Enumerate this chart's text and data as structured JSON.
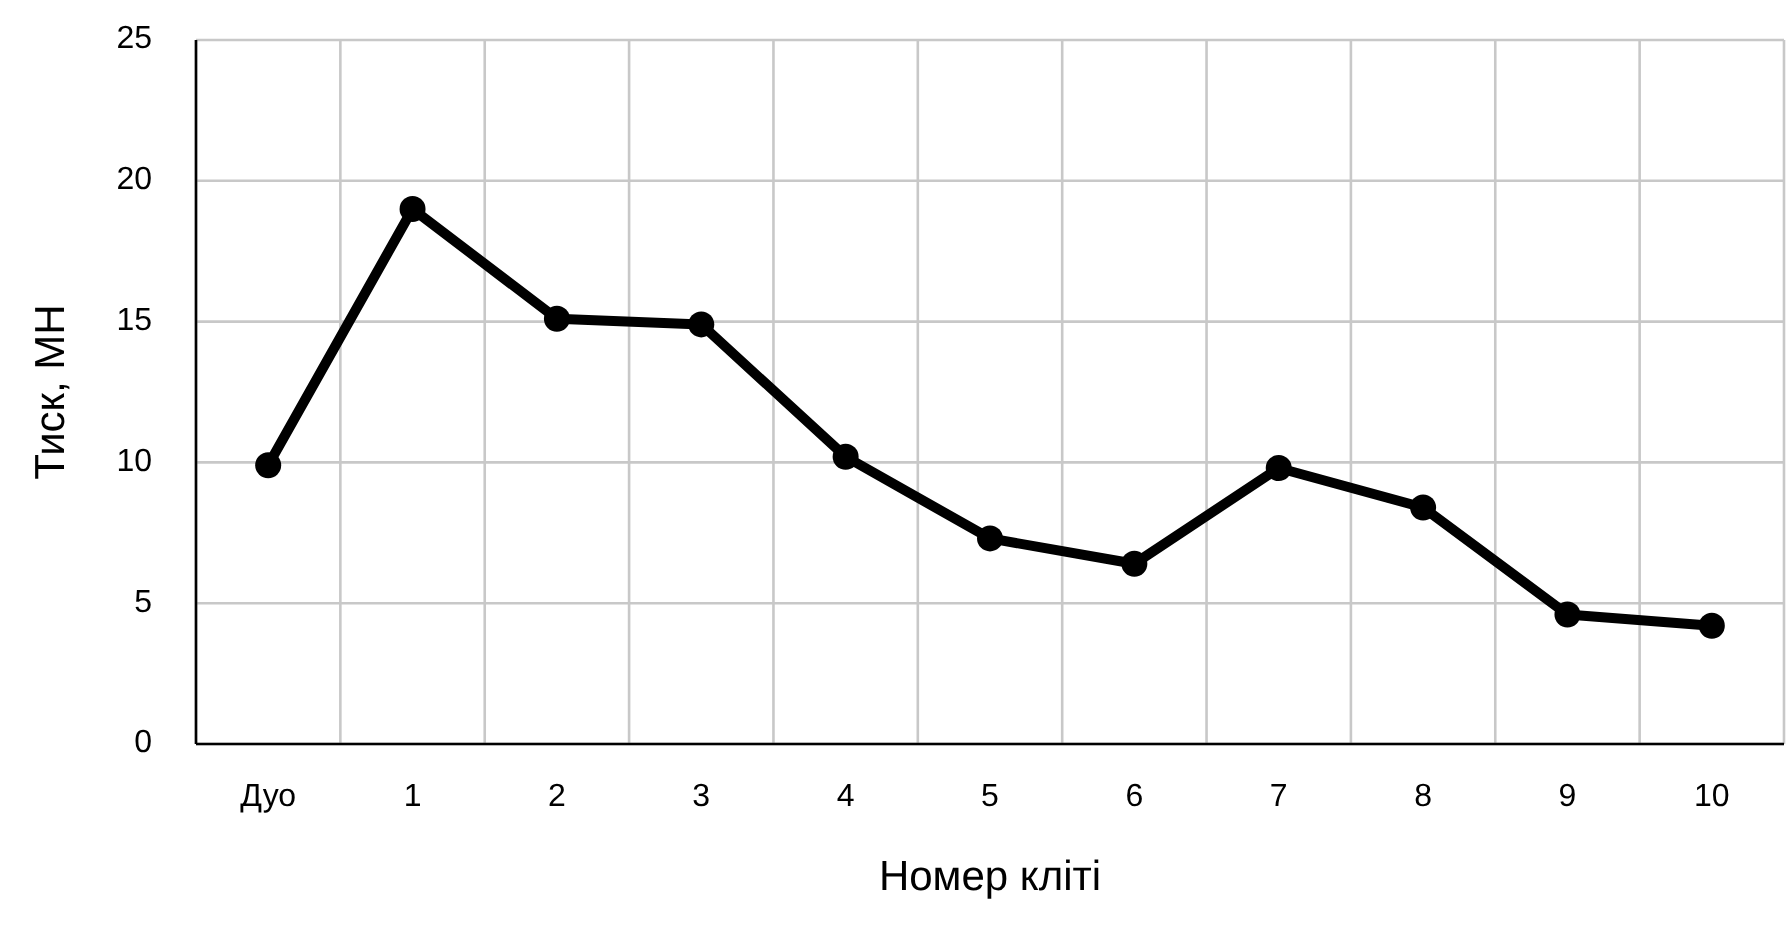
{
  "chart_data": {
    "type": "line",
    "xlabel": "Номер кліті",
    "ylabel": "Тиск, МН",
    "categories": [
      "Дуо",
      "1",
      "2",
      "3",
      "4",
      "5",
      "6",
      "7",
      "8",
      "9",
      "10"
    ],
    "series": [
      {
        "color": "#000000",
        "values": [
          9.9,
          19.0,
          15.1,
          14.9,
          10.2,
          7.3,
          6.4,
          9.8,
          8.4,
          4.6,
          4.2
        ]
      }
    ],
    "ylim": [
      0,
      25
    ],
    "yticks": [
      0,
      5,
      10,
      15,
      20,
      25
    ],
    "grid": true,
    "marker": "circle",
    "line_style": "solid"
  }
}
